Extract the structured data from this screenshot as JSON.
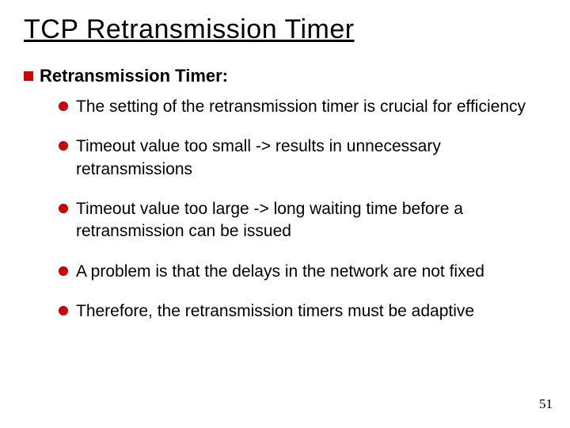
{
  "title": "TCP Retransmission Timer",
  "section": {
    "heading": "Retransmission Timer:"
  },
  "bullets": {
    "b0": "The setting of the retransmission timer is crucial for efficiency",
    "b1": "Timeout value too small ->  results in unnecessary retransmissions",
    "b2": "Timeout value too large ->  long waiting time before a retransmission can be issued",
    "b3": "A problem is that the delays in the network are not fixed",
    "b4": "Therefore, the retransmission timers must be adaptive"
  },
  "page_number": "51",
  "colors": {
    "bullet": "#cc0000",
    "text": "#000000",
    "background": "#ffffff"
  },
  "fonts": {
    "title_size_pt": 34,
    "heading_size_pt": 22,
    "body_size_pt": 21
  }
}
